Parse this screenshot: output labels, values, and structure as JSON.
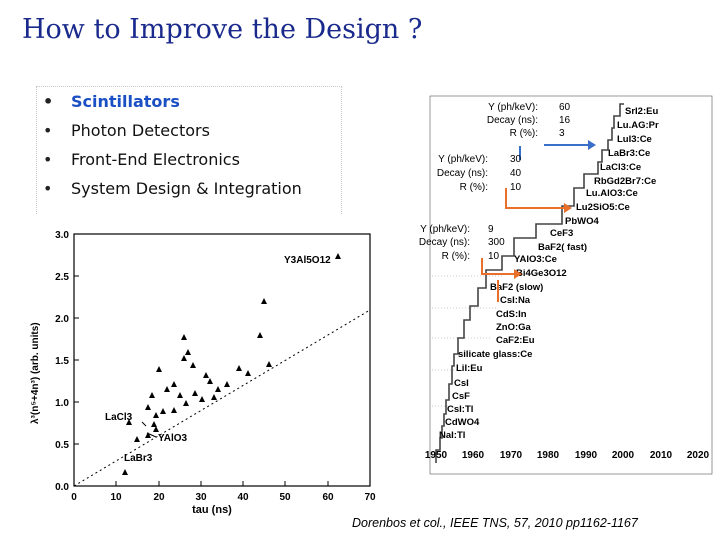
{
  "title": "How to Improve the Design ?",
  "bullets": [
    {
      "label": "Scintillators",
      "highlight": true
    },
    {
      "label": "Photon Detectors",
      "highlight": false
    },
    {
      "label": "Front-End Electronics",
      "highlight": false
    },
    {
      "label": "System Design & Integration",
      "highlight": false
    }
  ],
  "scatter": {
    "xlabel": "tau (ns)",
    "xticks": [
      "0",
      "10",
      "20",
      "30",
      "40",
      "50",
      "60",
      "70"
    ],
    "yticks": [
      "0.0",
      "0.5",
      "1.0",
      "1.5",
      "2.0",
      "2.5",
      "3.0"
    ],
    "labels": {
      "yag": "Y3Al5O12",
      "lacl": "LaCl3",
      "yalo": "YAlO3",
      "labr": "LaBr3"
    }
  },
  "timeline": {
    "xticks": [
      "1950",
      "1960",
      "1970",
      "1980",
      "1990",
      "2000",
      "2010",
      "2020"
    ],
    "crystals": [
      "SrI2:Eu",
      "Lu.AG:Pr",
      "LuI3:Ce",
      "LaBr3:Ce",
      "LaCl3:Ce",
      "RbGd2Br7:Ce",
      "Lu.AlO3:Ce",
      "Lu2SiO5:Ce",
      "PbWO4",
      "CeF3",
      "BaF2( fast)",
      "YAlO3:Ce",
      "Bi4Ge3O12",
      "BaF2 (slow)",
      "CsI:Na",
      "CdS:In",
      "ZnO:Ga",
      "CaF2:Eu",
      "silicate glass:Ce",
      "LiI:Eu",
      "CsI",
      "CsF",
      "CsI:Tl",
      "CdWO4",
      "NaI:Tl"
    ],
    "annotations": [
      {
        "keys": [
          "Y (ph/keV):",
          "Decay (ns):",
          "R (%):"
        ],
        "vals": [
          "60",
          "16",
          "3"
        ]
      },
      {
        "keys": [
          "Y (ph/keV):",
          "Decay (ns):",
          "R (%):"
        ],
        "vals": [
          "30",
          "40",
          "10"
        ]
      },
      {
        "keys": [
          "Y (ph/keV):",
          "Decay (ns):",
          "R (%):"
        ],
        "vals": [
          "9",
          "300",
          "10"
        ]
      }
    ]
  },
  "credit": "Dorenbos et col., IEEE TNS, 57, 2010 pp1162-1167",
  "colors": {
    "title": "#1a2a8c",
    "highlight": "#1b4fc4",
    "arrow_blue": "#3a6fc9",
    "arrow_orange": "#e8702a"
  }
}
